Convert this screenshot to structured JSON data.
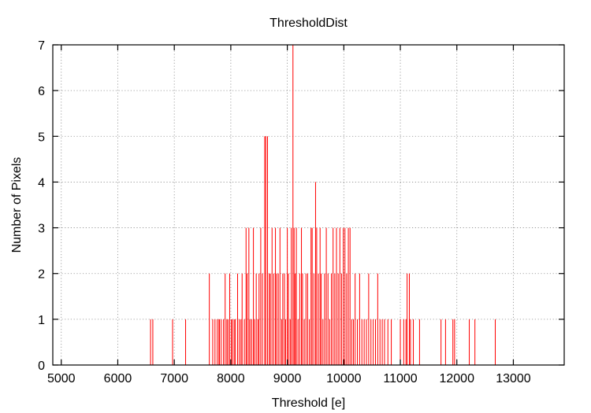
{
  "chart_data": {
    "type": "bar",
    "title": "ThresholdDist",
    "xlabel": "Threshold [e]",
    "ylabel": "Number of Pixels",
    "xlim": [
      4850,
      13900
    ],
    "ylim": [
      0,
      7
    ],
    "xticks": [
      5000,
      6000,
      7000,
      8000,
      9000,
      10000,
      11000,
      12000,
      13000
    ],
    "yticks": [
      0,
      1,
      2,
      3,
      4,
      5,
      6,
      7
    ],
    "grid": true,
    "legend": "none",
    "color": "#ff0000",
    "series": [
      {
        "x": [
          6580,
          6620,
          6970,
          7200,
          7620,
          7680,
          7720,
          7760,
          7790,
          7800,
          7830,
          7870,
          7900,
          7930,
          7950,
          7980,
          8010,
          8030,
          8060,
          8080,
          8120,
          8150,
          8180,
          8200,
          8240,
          8270,
          8290,
          8320,
          8340,
          8370,
          8400,
          8420,
          8450,
          8480,
          8500,
          8530,
          8560,
          8600,
          8620,
          8650,
          8680,
          8700,
          8730,
          8760,
          8790,
          8810,
          8840,
          8870,
          8900,
          8920,
          8950,
          8970,
          9000,
          9020,
          9050,
          9070,
          9100,
          9120,
          9140,
          9160,
          9190,
          9220,
          9250,
          9270,
          9300,
          9330,
          9360,
          9390,
          9420,
          9440,
          9470,
          9500,
          9520,
          9550,
          9580,
          9600,
          9630,
          9660,
          9690,
          9720,
          9750,
          9780,
          9810,
          9840,
          9870,
          9900,
          9930,
          9960,
          9990,
          10020,
          10050,
          10080,
          10110,
          10140,
          10170,
          10200,
          10240,
          10280,
          10320,
          10360,
          10400,
          10440,
          10480,
          10520,
          10560,
          10600,
          10640,
          10680,
          10720,
          10780,
          10840,
          11000,
          11060,
          11100,
          11120,
          11160,
          11180,
          11230,
          11340,
          11720,
          11800,
          11930,
          11960,
          12220,
          12320,
          12680
        ],
        "y": [
          1,
          1,
          1,
          1,
          2,
          1,
          1,
          1,
          1,
          1,
          1,
          1,
          2,
          1,
          1,
          2,
          1,
          1,
          1,
          1,
          2,
          1,
          1,
          2,
          1,
          3,
          2,
          3,
          1,
          1,
          3,
          1,
          2,
          1,
          2,
          3,
          2,
          5,
          5,
          5,
          2,
          2,
          3,
          2,
          3,
          2,
          2,
          3,
          1,
          2,
          2,
          1,
          3,
          2,
          1,
          3,
          7,
          3,
          2,
          3,
          1,
          2,
          3,
          2,
          1,
          2,
          2,
          1,
          3,
          3,
          2,
          4,
          3,
          2,
          3,
          2,
          1,
          2,
          3,
          2,
          1,
          2,
          3,
          2,
          3,
          2,
          3,
          2,
          3,
          3,
          2,
          3,
          3,
          1,
          1,
          2,
          1,
          2,
          1,
          1,
          1,
          2,
          1,
          1,
          1,
          2,
          1,
          1,
          1,
          1,
          1,
          1,
          1,
          1,
          2,
          2,
          1,
          1,
          1,
          1,
          1,
          1,
          1,
          1,
          1,
          1
        ]
      }
    ]
  }
}
